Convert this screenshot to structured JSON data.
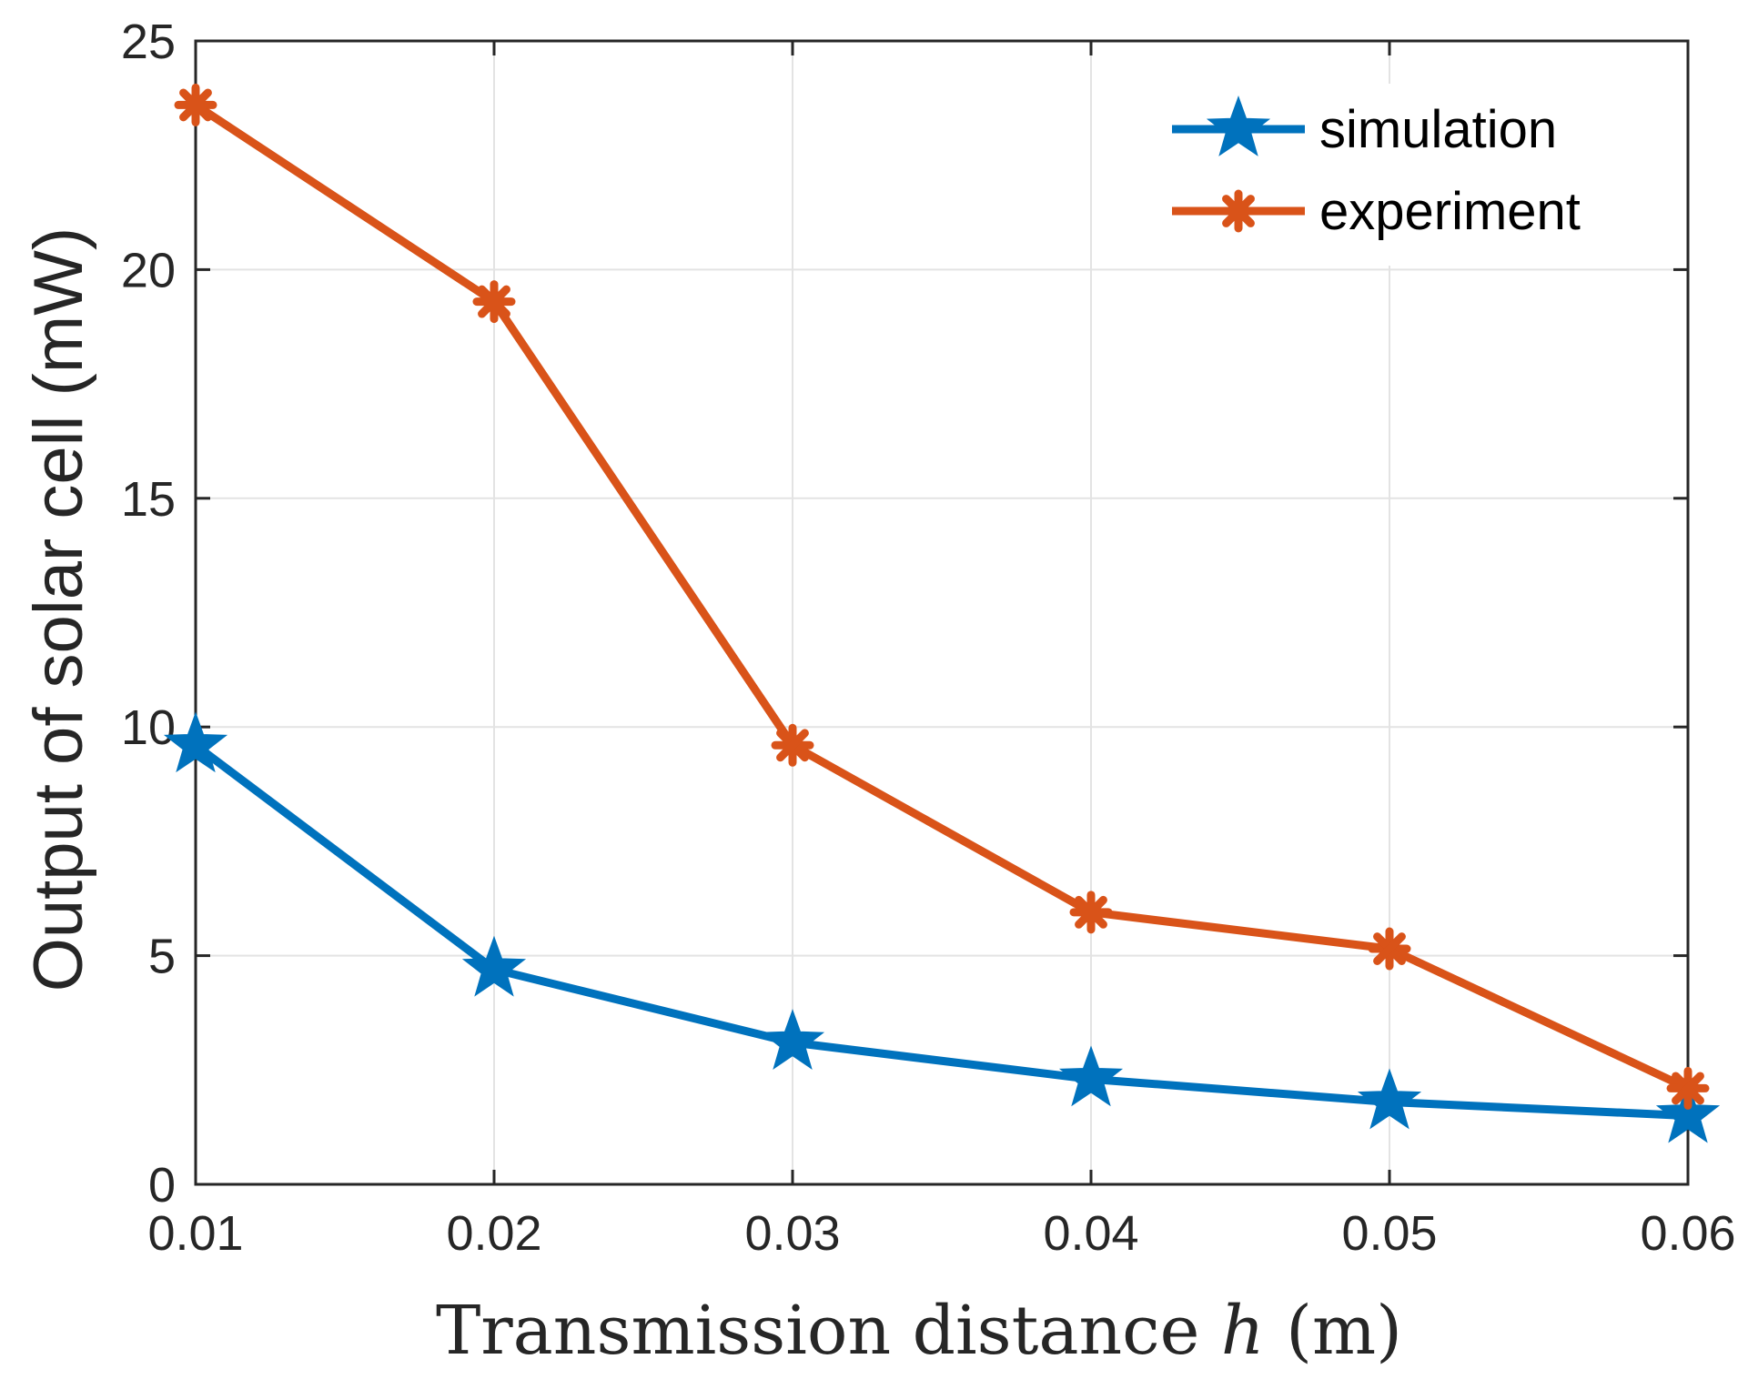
{
  "chart_data": {
    "type": "line",
    "x": [
      0.01,
      0.02,
      0.03,
      0.04,
      0.05,
      0.06
    ],
    "x_ticks": [
      "0.01",
      "0.02",
      "0.03",
      "0.04",
      "0.05",
      "0.06"
    ],
    "y_ticks": [
      "0",
      "5",
      "10",
      "15",
      "20",
      "25"
    ],
    "xlim": [
      0.01,
      0.06
    ],
    "ylim": [
      0,
      25
    ],
    "xlabel_main": "Transmission distance ",
    "xlabel_var": "h",
    "xlabel_unit": " (m)",
    "ylabel": "Output of solar cell (mW)",
    "grid": true,
    "legend_position": "top-right",
    "series": [
      {
        "name": "simulation",
        "values": [
          9.6,
          4.7,
          3.1,
          2.3,
          1.8,
          1.5
        ],
        "color": "#0072BD",
        "marker": "star"
      },
      {
        "name": "experiment",
        "values": [
          23.6,
          19.3,
          9.6,
          5.95,
          5.15,
          2.1
        ],
        "color": "#D95319",
        "marker": "asterisk"
      }
    ]
  }
}
